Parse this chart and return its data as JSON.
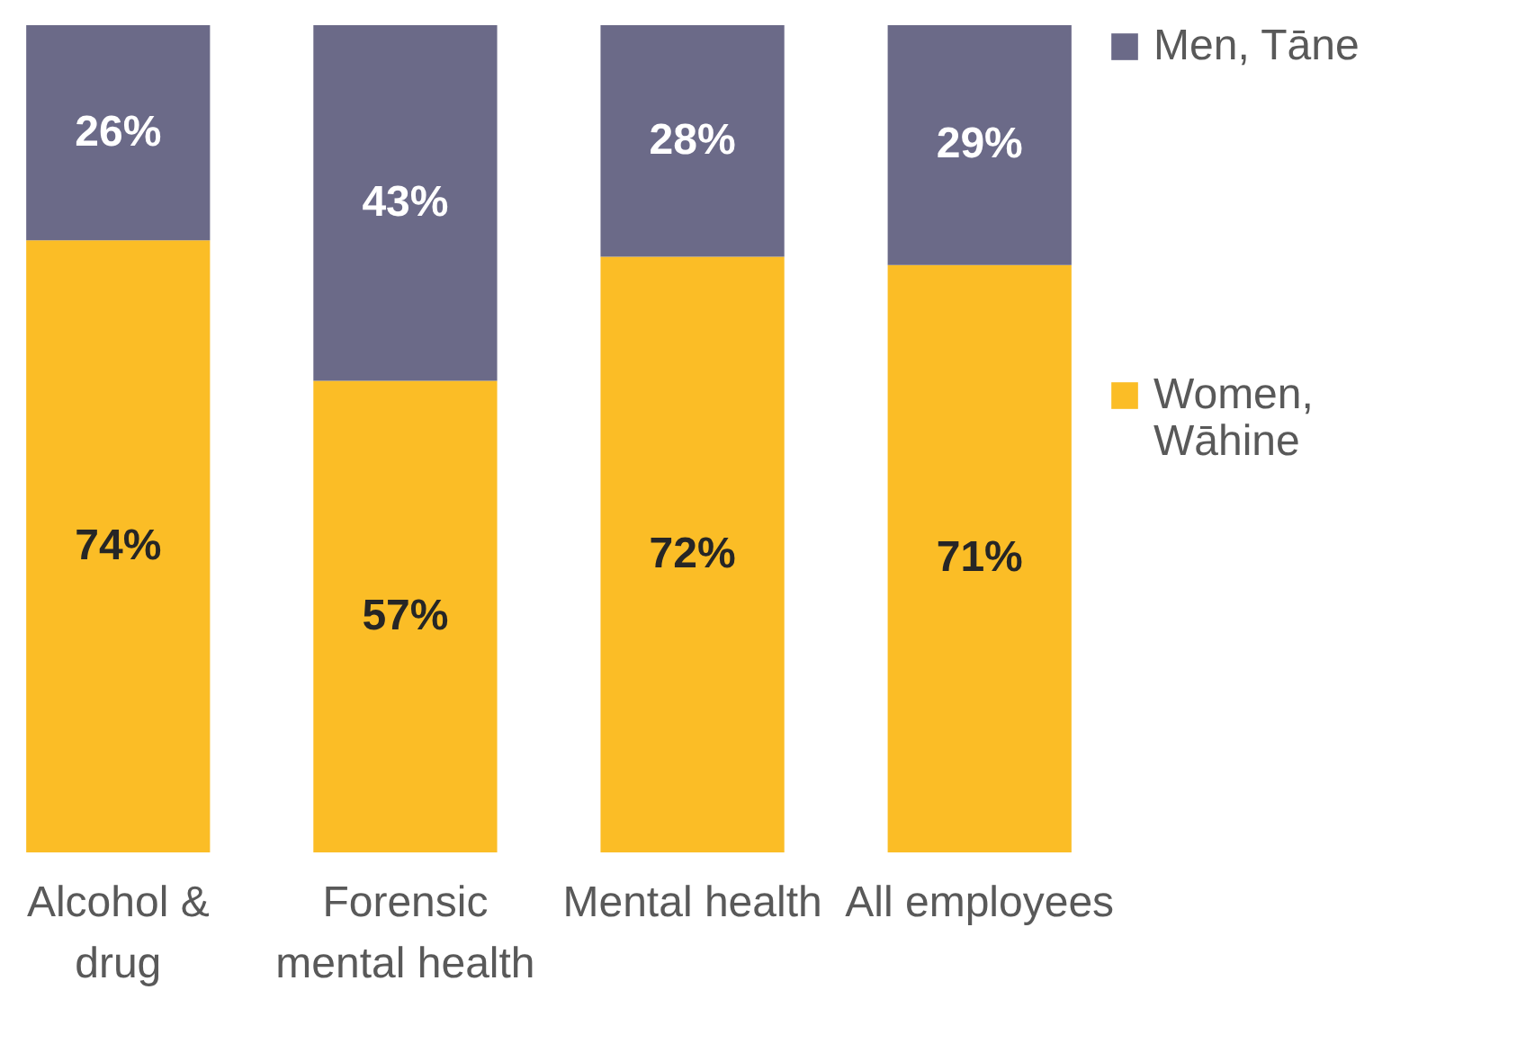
{
  "chart_data": {
    "type": "bar",
    "stacked": true,
    "legend": "right",
    "categories": [
      "Alcohol & drug",
      "Forensic mental health",
      "Mental health",
      "All employees"
    ],
    "series": [
      {
        "name": "Women, Wāhine",
        "color": "#fbbd26",
        "values": [
          74,
          57,
          72,
          71
        ],
        "value_labels": [
          "74%",
          "57%",
          "72%",
          "71%"
        ]
      },
      {
        "name": "Men, Tāne",
        "color": "#6b6a88",
        "values": [
          26,
          43,
          28,
          29
        ],
        "value_labels": [
          "26%",
          "43%",
          "28%",
          "29%"
        ]
      }
    ]
  }
}
